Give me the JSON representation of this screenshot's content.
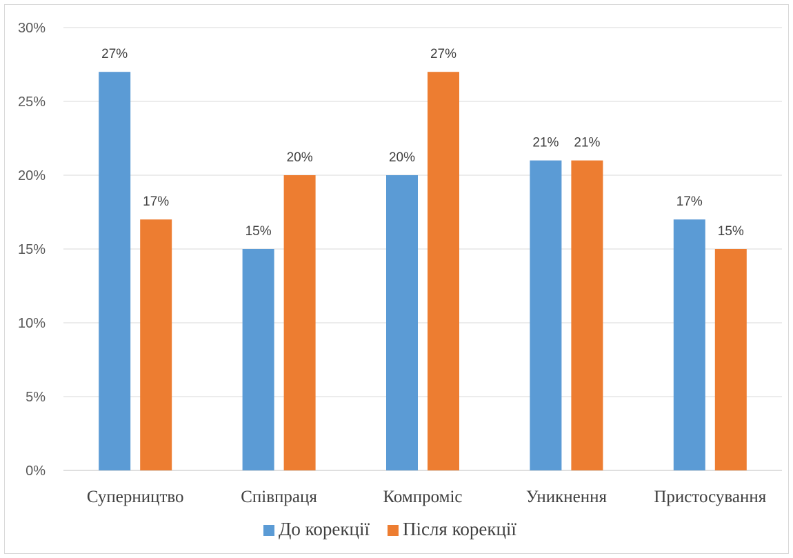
{
  "chart_data": {
    "type": "bar",
    "categories": [
      "Суперництво",
      "Співпраця",
      "Компроміс",
      "Уникнення",
      "Пристосування"
    ],
    "series": [
      {
        "name": "До корекції",
        "values": [
          27,
          15,
          20,
          21,
          17
        ],
        "color": "#5B9BD5"
      },
      {
        "name": "Після корекції",
        "values": [
          17,
          20,
          27,
          21,
          15
        ],
        "color": "#ED7D31"
      }
    ],
    "value_format": "percent",
    "ylim": [
      0,
      30
    ],
    "yticks": [
      "0%",
      "5%",
      "10%",
      "15%",
      "20%",
      "25%",
      "30%"
    ],
    "grid": true,
    "legend_position": "bottom",
    "title": "",
    "xlabel": "",
    "ylabel": ""
  }
}
